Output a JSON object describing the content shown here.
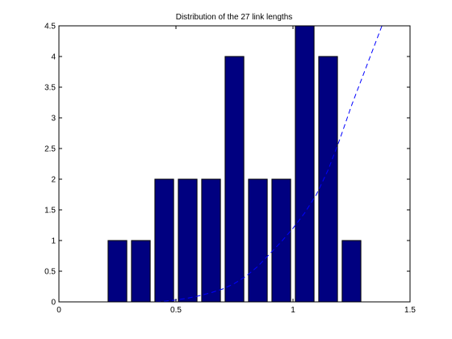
{
  "chart_data": {
    "type": "bar",
    "title": "Distribution of the 27 link lengths",
    "xlabel": "",
    "ylabel": "",
    "xlim": [
      0,
      1.5
    ],
    "ylim": [
      0,
      4.5
    ],
    "xticks": [
      "0",
      "0.5",
      "1",
      "1.5"
    ],
    "yticks": [
      "0",
      "0.5",
      "1",
      "1.5",
      "2",
      "2.5",
      "3",
      "3.5",
      "4",
      "4.5"
    ],
    "grid": false,
    "bar_color": "#000080",
    "bars": [
      {
        "x": 0.25,
        "y": 1
      },
      {
        "x": 0.35,
        "y": 1
      },
      {
        "x": 0.45,
        "y": 2
      },
      {
        "x": 0.55,
        "y": 2
      },
      {
        "x": 0.65,
        "y": 2
      },
      {
        "x": 0.75,
        "y": 4
      },
      {
        "x": 0.85,
        "y": 2
      },
      {
        "x": 0.95,
        "y": 2
      },
      {
        "x": 1.05,
        "y": 4.5
      },
      {
        "x": 1.15,
        "y": 4
      },
      {
        "x": 1.25,
        "y": 1
      }
    ],
    "bar_width": 0.08,
    "curve": {
      "style": "dashed",
      "color": "#0000ff",
      "x": [
        0,
        0.1,
        0.2,
        0.3,
        0.4,
        0.45,
        0.5,
        0.55,
        0.6,
        0.65,
        0.7,
        0.75,
        0.8,
        0.85,
        0.9,
        0.95,
        1.0,
        1.05,
        1.1,
        1.15,
        1.2,
        1.25,
        1.3,
        1.35,
        1.38
      ],
      "y": [
        0,
        0,
        0,
        0,
        0,
        0.01,
        0.03,
        0.06,
        0.1,
        0.15,
        0.21,
        0.3,
        0.42,
        0.58,
        0.78,
        0.98,
        1.2,
        1.45,
        1.75,
        2.15,
        2.65,
        3.2,
        3.7,
        4.2,
        4.5
      ]
    }
  }
}
